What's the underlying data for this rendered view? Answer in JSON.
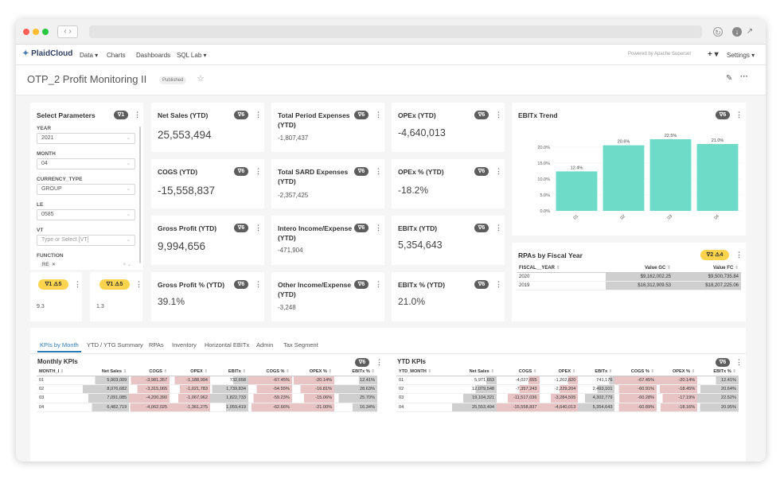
{
  "app": {
    "brand": "PlaidCloud",
    "nav": [
      "Data",
      "Charts",
      "Dashboards",
      "SQL Lab"
    ],
    "powered": "Powered by Apache Superset",
    "plus": "+",
    "settings": "Settings"
  },
  "dashboard": {
    "title": "OTP_2 Profit Monitoring II",
    "status": "Published"
  },
  "params": {
    "title": "Select Parameters",
    "badge": "1",
    "fields": [
      {
        "label": "YEAR",
        "value": "2021"
      },
      {
        "label": "MONTH",
        "value": "04"
      },
      {
        "label": "CURRENCY_TYPE",
        "value": "GROUP"
      },
      {
        "label": "LE",
        "value": "0585"
      },
      {
        "label": "VT",
        "value": "Type or Select [VT]"
      },
      {
        "label": "FUNCTION",
        "value": "RE"
      }
    ]
  },
  "small_cards": [
    {
      "filters": "1",
      "warns": "5",
      "value": "9.3"
    },
    {
      "filters": "1",
      "warns": "5",
      "value": "1.3"
    }
  ],
  "kpis": [
    {
      "title": "Net Sales (YTD)",
      "value": "25,553,494",
      "badge": "6"
    },
    {
      "title": "COGS (YTD)",
      "value": "-15,558,837",
      "badge": "6"
    },
    {
      "title": "Gross Profit (YTD)",
      "value": "9,994,656",
      "badge": "6"
    },
    {
      "title": "Gross Profit % (YTD)",
      "value": "39.1%",
      "badge": "6"
    },
    {
      "title": "Total Period Expenses (YTD)",
      "value": "-1,807,437",
      "badge": "6"
    },
    {
      "title": "Total SARD Expenses (YTD)",
      "value": "-2,357,425",
      "badge": "6"
    },
    {
      "title": "Intero Income/Expense (YTD)",
      "value": "-471,904",
      "badge": "6"
    },
    {
      "title": "Other Income/Expense (YTD)",
      "value": "-3,248",
      "badge": "6"
    },
    {
      "title": "OPEx (YTD)",
      "value": "-4,640,013",
      "badge": "6"
    },
    {
      "title": "OPEx % (YTD)",
      "value": "-18.2%",
      "badge": "6"
    },
    {
      "title": "EBITx (YTD)",
      "value": "5,354,643",
      "badge": "6"
    },
    {
      "title": "EBITx % (YTD)",
      "value": "21.0%",
      "badge": "6"
    }
  ],
  "trend": {
    "title": "EBITx Trend",
    "badge": "6"
  },
  "chart_data": {
    "type": "bar",
    "title": "EBITx Trend",
    "categories": [
      "01",
      "02",
      "03",
      "04"
    ],
    "values": [
      12.4,
      20.6,
      22.5,
      21.0
    ],
    "data_labels": [
      "12.4%",
      "20.6%",
      "22.5%",
      "21.0%"
    ],
    "yticks": [
      "0.0%",
      "5.0%",
      "10.0%",
      "15.0%",
      "20.0%"
    ],
    "ylim": [
      0,
      25
    ],
    "color": "#6edbc8"
  },
  "rpas": {
    "title": "RPAs by Fiscal Year",
    "filters": "2",
    "warns": "4",
    "columns": [
      "FISCAL__YEAR",
      "Value GC",
      "Value FC"
    ],
    "rows": [
      [
        "2020",
        "$9,162,002.25",
        "$9,500,735.84"
      ],
      [
        "2019",
        "$16,312,909.53",
        "$18,207,225.06"
      ]
    ]
  },
  "tabs": [
    "KPIs by Month",
    "YTD / YTG Summary",
    "RPAs",
    "Inventory",
    "Horizontal EBITx",
    "Admin",
    "Tax Segment"
  ],
  "monthly": {
    "title": "Monthly KPIs",
    "badge": "6",
    "columns": [
      "MONTH_I",
      "Net Sales",
      "COGS",
      "OPEX",
      "EBITx",
      "COGS %",
      "OPEX %",
      "EBITx %"
    ],
    "rows": [
      [
        "01",
        "5,903,009",
        "-3,981,357",
        "-1,188,994",
        "732,658",
        "-67.45%",
        "-20.14%",
        "12.41%"
      ],
      [
        "02",
        "8,076,682",
        "-3,315,065",
        "-1,021,783",
        "1,739,834",
        "-54.55%",
        "-16.81%",
        "28.63%"
      ],
      [
        "03",
        "7,091,085",
        "-4,200,390",
        "-1,067,962",
        "1,822,733",
        "-59.23%",
        "-15.06%",
        "25.70%"
      ],
      [
        "04",
        "6,482,719",
        "-4,062,025",
        "-1,361,275",
        "1,059,419",
        "-62.66%",
        "-21.00%",
        "16.34%"
      ]
    ]
  },
  "ytd": {
    "title": "YTD KPIs",
    "badge": "6",
    "columns": [
      "YTD_MONTH",
      "Net Sales",
      "COGS",
      "OPEX",
      "EBITx",
      "COGS %",
      "OPEX %",
      "EBITx %"
    ],
    "rows": [
      [
        "01",
        "5,971,653",
        "-4,027,655",
        "-1,202,820",
        "741,176",
        "-67.45%",
        "-20.14%",
        "12.41%"
      ],
      [
        "02",
        "12,079,548",
        "-7,357,243",
        "-2,229,204",
        "2,493,101",
        "-60.91%",
        "-18.45%",
        "20.64%"
      ],
      [
        "03",
        "19,104,321",
        "-11,517,036",
        "-3,284,505",
        "4,302,779",
        "-60.28%",
        "-17.19%",
        "22.52%"
      ],
      [
        "04",
        "25,553,494",
        "-15,558,837",
        "-4,640,013",
        "5,354,643",
        "-60.89%",
        "-18.16%",
        "20.95%"
      ]
    ]
  }
}
